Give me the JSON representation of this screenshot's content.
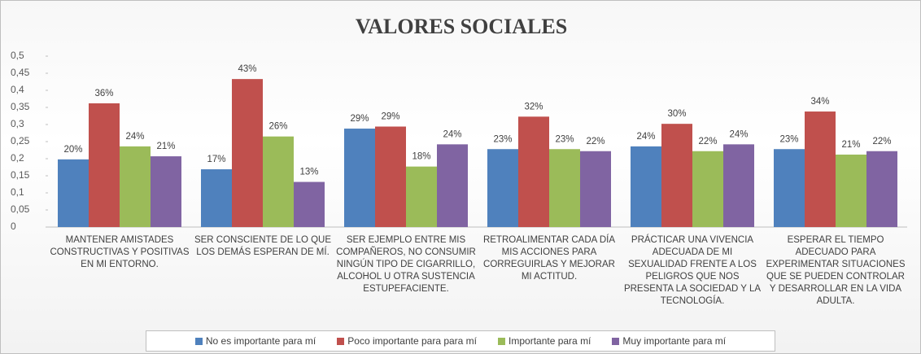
{
  "chart_data": {
    "type": "bar",
    "title": "VALORES SOCIALES",
    "categories": [
      "MANTENER AMISTADES CONSTRUCTIVAS Y POSITIVAS EN MI ENTORNO.",
      "SER CONSCIENTE DE LO QUE LOS DEMÁS ESPERAN DE MÍ.",
      "SER EJEMPLO ENTRE MIS COMPAÑEROS, NO CONSUMIR NINGÚN TIPO DE CIGARRILLO, ALCOHOL U OTRA SUSTENCIA ESTUPEFACIENTE.",
      "RETROALIMENTAR CADA DÍA MIS ACCIONES PARA CORREGUIRLAS Y MEJORAR MI ACTITUD.",
      "PRÁCTICAR UNA VIVENCIA ADECUADA DE MI SEXUALIDAD FRENTE A LOS PELIGROS QUE NOS PRESENTA LA SOCIEDAD Y LA TECNOLOGÍA.",
      "ESPERAR EL TIEMPO ADECUADO PARA EXPERIMENTAR SITUACIONES QUE SE PUEDEN CONTROLAR Y DESARROLLAR EN LA VIDA ADULTA."
    ],
    "series": [
      {
        "name": "No es importante para mí",
        "color": "#4f81bd",
        "values": [
          0.198,
          0.169,
          0.288,
          0.228,
          0.236,
          0.228
        ],
        "value_labels": [
          "20%",
          "17%",
          "29%",
          "23%",
          "24%",
          "23%"
        ]
      },
      {
        "name": "Poco importante para para mí",
        "color": "#c0504d",
        "values": [
          0.362,
          0.433,
          0.294,
          0.323,
          0.302,
          0.338
        ],
        "value_labels": [
          "36%",
          "43%",
          "29%",
          "32%",
          "30%",
          "34%"
        ]
      },
      {
        "name": "Importante para mí",
        "color": "#9bbb59",
        "values": [
          0.236,
          0.265,
          0.177,
          0.228,
          0.222,
          0.212
        ],
        "value_labels": [
          "24%",
          "26%",
          "18%",
          "23%",
          "22%",
          "21%"
        ]
      },
      {
        "name": "Muy importante para mí",
        "color": "#8064a2",
        "values": [
          0.207,
          0.132,
          0.242,
          0.222,
          0.242,
          0.222
        ],
        "value_labels": [
          "21%",
          "13%",
          "24%",
          "22%",
          "24%",
          "22%"
        ]
      }
    ],
    "ylim": [
      0,
      0.5
    ],
    "yticks": [
      0,
      {
        "value": 0.05,
        "label": "0,05"
      },
      {
        "value": 0.1,
        "label": "0,1"
      },
      {
        "value": 0.15,
        "label": "0,15"
      },
      {
        "value": 0.2,
        "label": "0,2"
      },
      {
        "value": 0.25,
        "label": "0,25"
      },
      {
        "value": 0.3,
        "label": "0,3"
      },
      {
        "value": 0.35,
        "label": "0,35"
      },
      {
        "value": 0.4,
        "label": "0,4"
      },
      {
        "value": 0.45,
        "label": "0,45"
      },
      {
        "value": 0.5,
        "label": "0,5"
      }
    ],
    "grid": false,
    "legend": "bottom"
  }
}
